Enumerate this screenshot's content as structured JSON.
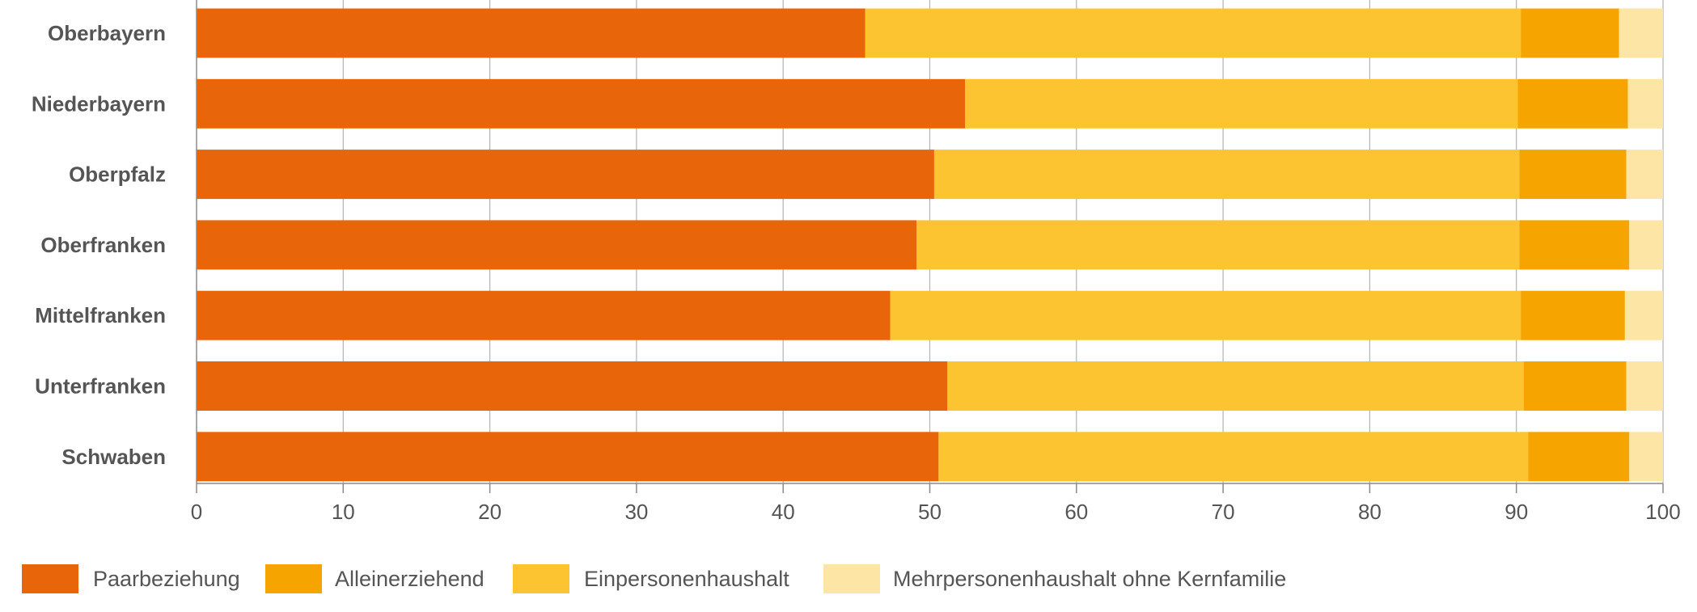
{
  "chart_data": {
    "type": "bar",
    "orientation": "horizontal",
    "stacked": true,
    "categories": [
      "Oberbayern",
      "Niederbayern",
      "Oberpfalz",
      "Oberfranken",
      "Mittelfranken",
      "Unterfranken",
      "Schwaben"
    ],
    "series": [
      {
        "name": "Paarbeziehung",
        "color": "#e8650a",
        "values": [
          45.6,
          52.4,
          50.3,
          49.1,
          47.3,
          51.2,
          50.6
        ]
      },
      {
        "name": "Einpersonenhaushalt",
        "color": "#fcc431",
        "values": [
          44.7,
          37.7,
          39.9,
          41.1,
          43.0,
          39.3,
          40.2
        ]
      },
      {
        "name": "Alleinerziehend",
        "color": "#f5a400",
        "values": [
          6.7,
          7.5,
          7.3,
          7.5,
          7.1,
          7.0,
          6.9
        ]
      },
      {
        "name": "Mehrpersonenhaushalt ohne Kernfamilie",
        "color": "#fde5a6",
        "values": [
          3.0,
          2.4,
          2.5,
          2.3,
          2.6,
          2.5,
          2.3
        ]
      }
    ],
    "legend_order": [
      "Paarbeziehung",
      "Alleinerziehend",
      "Einpersonenhaushalt",
      "Mehrpersonenhaushalt ohne Kernfamilie"
    ],
    "xlim": [
      0,
      100
    ],
    "xticks": [
      "0",
      "10",
      "20",
      "30",
      "40",
      "50",
      "60",
      "70",
      "80",
      "90",
      "100"
    ],
    "grid": true,
    "legend_position": "bottom-left",
    "title": "",
    "xlabel": "",
    "ylabel": ""
  }
}
